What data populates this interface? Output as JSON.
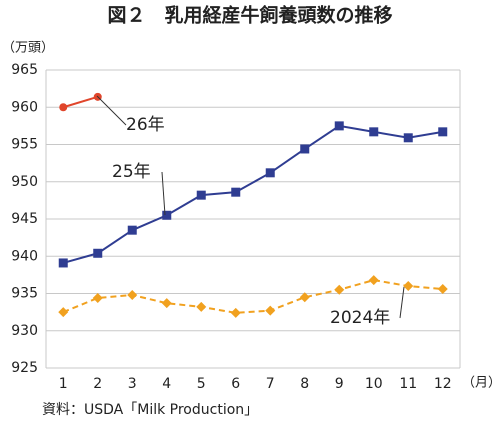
{
  "chart_data": {
    "type": "line",
    "title": "図２　乳用経産牛飼養頭数の推移",
    "y_label": "（万頭）",
    "x_label": "（月）",
    "source": "資料：USDA「Milk Production」",
    "categories": [
      "1",
      "2",
      "3",
      "4",
      "5",
      "6",
      "7",
      "8",
      "9",
      "10",
      "11",
      "12"
    ],
    "series": [
      {
        "name": "26年",
        "color": "#e0452b",
        "marker": "circle",
        "line_style": "solid",
        "values": [
          960.0,
          961.4,
          null,
          null,
          null,
          null,
          null,
          null,
          null,
          null,
          null,
          null
        ]
      },
      {
        "name": "25年",
        "color": "#2f3d92",
        "marker": "square",
        "line_style": "solid",
        "values": [
          939.1,
          940.4,
          943.5,
          945.5,
          948.2,
          948.6,
          951.2,
          954.4,
          957.5,
          956.7,
          955.9,
          956.7
        ]
      },
      {
        "name": "2024年",
        "color": "#f1a11f",
        "marker": "diamond",
        "line_style": "dashed",
        "values": [
          932.5,
          934.4,
          934.8,
          933.7,
          933.2,
          932.4,
          932.7,
          934.5,
          935.5,
          936.8,
          936.0,
          935.6
        ]
      }
    ],
    "ylim": [
      925,
      965
    ],
    "yticks": [
      925,
      930,
      935,
      940,
      945,
      950,
      955,
      960,
      965
    ],
    "grid": true
  }
}
